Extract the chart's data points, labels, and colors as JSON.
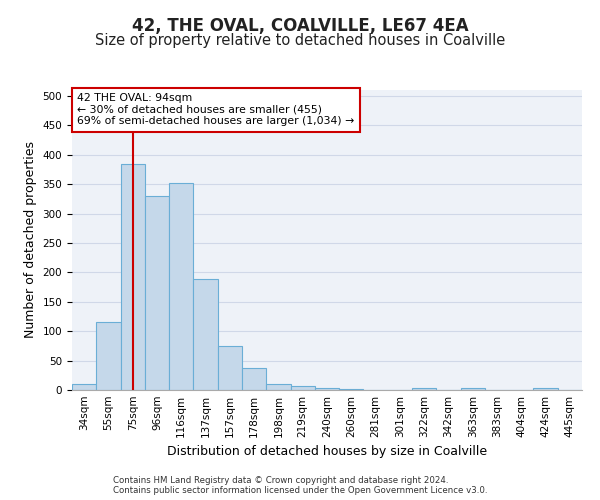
{
  "title1": "42, THE OVAL, COALVILLE, LE67 4EA",
  "title2": "Size of property relative to detached houses in Coalville",
  "xlabel": "Distribution of detached houses by size in Coalville",
  "ylabel": "Number of detached properties",
  "footer": "Contains HM Land Registry data © Crown copyright and database right 2024.\nContains public sector information licensed under the Open Government Licence v3.0.",
  "bins": [
    "34sqm",
    "55sqm",
    "75sqm",
    "96sqm",
    "116sqm",
    "137sqm",
    "157sqm",
    "178sqm",
    "198sqm",
    "219sqm",
    "240sqm",
    "260sqm",
    "281sqm",
    "301sqm",
    "322sqm",
    "342sqm",
    "363sqm",
    "383sqm",
    "404sqm",
    "424sqm",
    "445sqm"
  ],
  "bar_values": [
    10,
    115,
    385,
    330,
    352,
    188,
    75,
    37,
    10,
    6,
    3,
    2,
    0,
    0,
    3,
    0,
    3,
    0,
    0,
    3,
    0
  ],
  "bar_color": "#c5d8ea",
  "bar_edge_color": "#6aaed6",
  "vline_x": 2,
  "vline_color": "#cc0000",
  "annotation_text": "42 THE OVAL: 94sqm\n← 30% of detached houses are smaller (455)\n69% of semi-detached houses are larger (1,034) →",
  "annotation_box_color": "#ffffff",
  "annotation_box_edge_color": "#cc0000",
  "ylim": [
    0,
    510
  ],
  "yticks": [
    0,
    50,
    100,
    150,
    200,
    250,
    300,
    350,
    400,
    450,
    500
  ],
  "grid_color": "#d0d8e8",
  "background_color": "#eef2f8",
  "title_fontsize": 12,
  "subtitle_fontsize": 10.5,
  "tick_fontsize": 7.5,
  "ylabel_fontsize": 9,
  "xlabel_fontsize": 9
}
